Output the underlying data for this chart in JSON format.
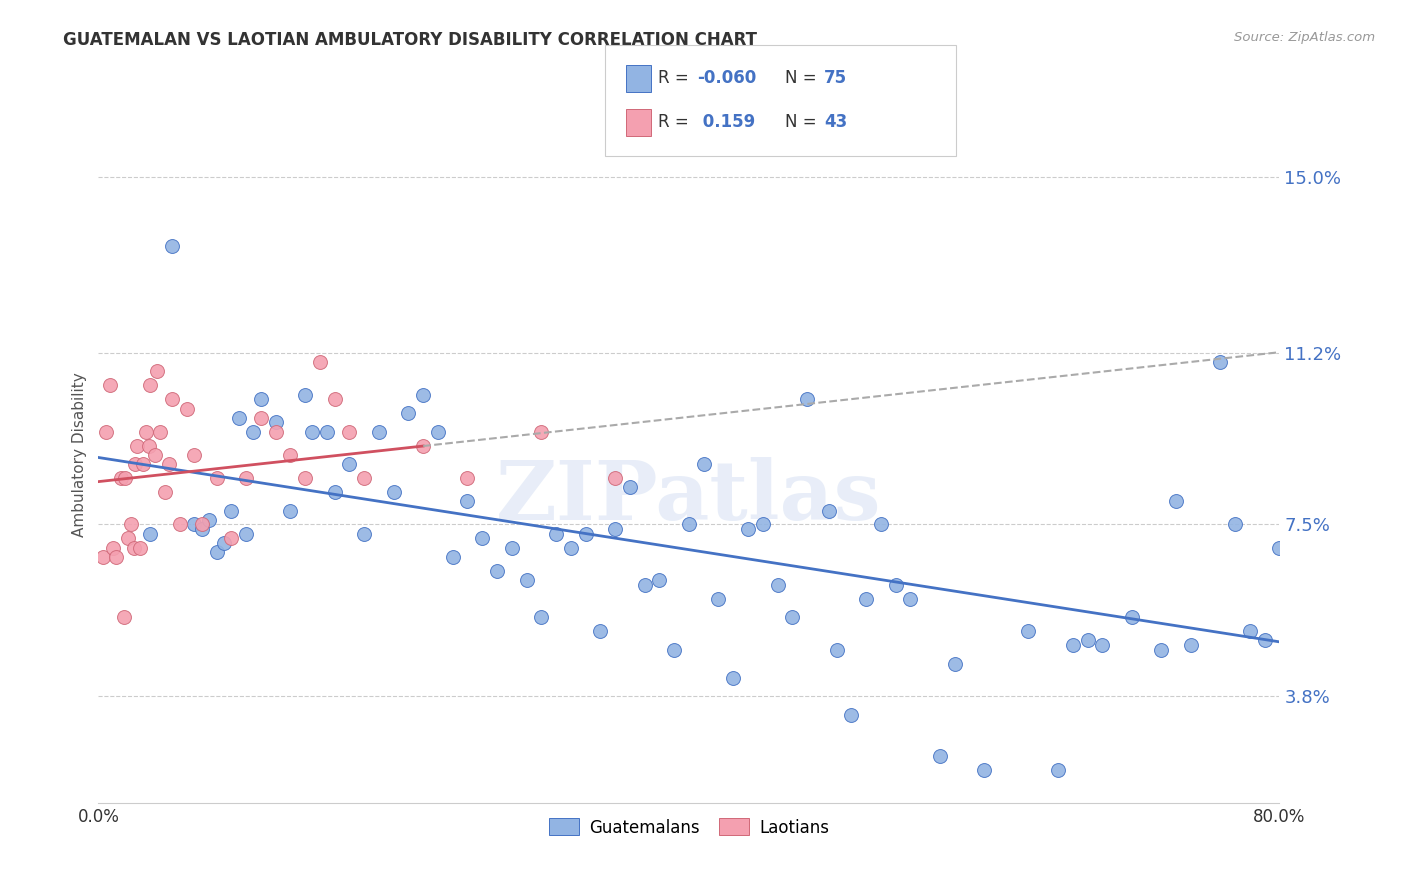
{
  "title": "GUATEMALAN VS LAOTIAN AMBULATORY DISABILITY CORRELATION CHART",
  "source": "Source: ZipAtlas.com",
  "ylabel": "Ambulatory Disability",
  "yticks": [
    "3.8%",
    "7.5%",
    "11.2%",
    "15.0%"
  ],
  "ytick_vals": [
    3.8,
    7.5,
    11.2,
    15.0
  ],
  "xlim": [
    0.0,
    80.0
  ],
  "ylim": [
    1.5,
    16.5
  ],
  "guatemalan_color": "#92b4e3",
  "guatemalan_edge": "#4472c4",
  "laotian_color": "#f4a0b0",
  "laotian_edge": "#d06878",
  "trend_guatemalan_color": "#4472c4",
  "trend_laotian_color": "#d05060",
  "watermark": "ZIPatlas",
  "guatemalan_x": [
    3.5,
    5.0,
    6.5,
    7.0,
    7.5,
    8.0,
    8.5,
    9.0,
    9.5,
    10.0,
    10.5,
    11.0,
    12.0,
    13.0,
    14.0,
    14.5,
    15.5,
    16.0,
    17.0,
    18.0,
    19.0,
    20.0,
    21.0,
    22.0,
    23.0,
    24.0,
    25.0,
    26.0,
    27.0,
    28.0,
    29.0,
    30.0,
    31.0,
    32.0,
    33.0,
    34.0,
    35.0,
    36.0,
    37.0,
    38.0,
    39.0,
    40.0,
    41.0,
    42.0,
    43.0,
    44.0,
    45.0,
    46.0,
    47.0,
    48.0,
    49.5,
    50.0,
    51.0,
    52.0,
    53.0,
    54.0,
    55.0,
    57.0,
    58.0,
    60.0,
    63.0,
    65.0,
    66.0,
    67.0,
    68.0,
    70.0,
    72.0,
    73.0,
    74.0,
    76.0,
    77.0,
    78.0,
    79.0,
    80.0,
    80.5
  ],
  "guatemalan_y": [
    7.3,
    13.5,
    7.5,
    7.4,
    7.6,
    6.9,
    7.1,
    7.8,
    9.8,
    7.3,
    9.5,
    10.2,
    9.7,
    7.8,
    10.3,
    9.5,
    9.5,
    8.2,
    8.8,
    7.3,
    9.5,
    8.2,
    9.9,
    10.3,
    9.5,
    6.8,
    8.0,
    7.2,
    6.5,
    7.0,
    6.3,
    5.5,
    7.3,
    7.0,
    7.3,
    5.2,
    7.4,
    8.3,
    6.2,
    6.3,
    4.8,
    7.5,
    8.8,
    5.9,
    4.2,
    7.4,
    7.5,
    6.2,
    5.5,
    10.2,
    7.8,
    4.8,
    3.4,
    5.9,
    7.5,
    6.2,
    5.9,
    2.5,
    4.5,
    2.2,
    5.2,
    2.2,
    4.9,
    5.0,
    4.9,
    5.5,
    4.8,
    8.0,
    4.9,
    11.0,
    7.5,
    5.2,
    5.0,
    7.0,
    6.8
  ],
  "laotian_x": [
    0.3,
    0.5,
    0.8,
    1.0,
    1.2,
    1.5,
    1.7,
    1.8,
    2.0,
    2.2,
    2.4,
    2.5,
    2.6,
    2.8,
    3.0,
    3.2,
    3.4,
    3.5,
    3.8,
    4.0,
    4.2,
    4.5,
    4.8,
    5.0,
    5.5,
    6.0,
    6.5,
    7.0,
    8.0,
    9.0,
    10.0,
    11.0,
    12.0,
    13.0,
    14.0,
    15.0,
    16.0,
    17.0,
    18.0,
    22.0,
    25.0,
    30.0,
    35.0
  ],
  "laotian_y": [
    6.8,
    9.5,
    10.5,
    7.0,
    6.8,
    8.5,
    5.5,
    8.5,
    7.2,
    7.5,
    7.0,
    8.8,
    9.2,
    7.0,
    8.8,
    9.5,
    9.2,
    10.5,
    9.0,
    10.8,
    9.5,
    8.2,
    8.8,
    10.2,
    7.5,
    10.0,
    9.0,
    7.5,
    8.5,
    7.2,
    8.5,
    9.8,
    9.5,
    9.0,
    8.5,
    11.0,
    10.2,
    9.5,
    8.5,
    9.2,
    8.5,
    9.5,
    8.5
  ]
}
